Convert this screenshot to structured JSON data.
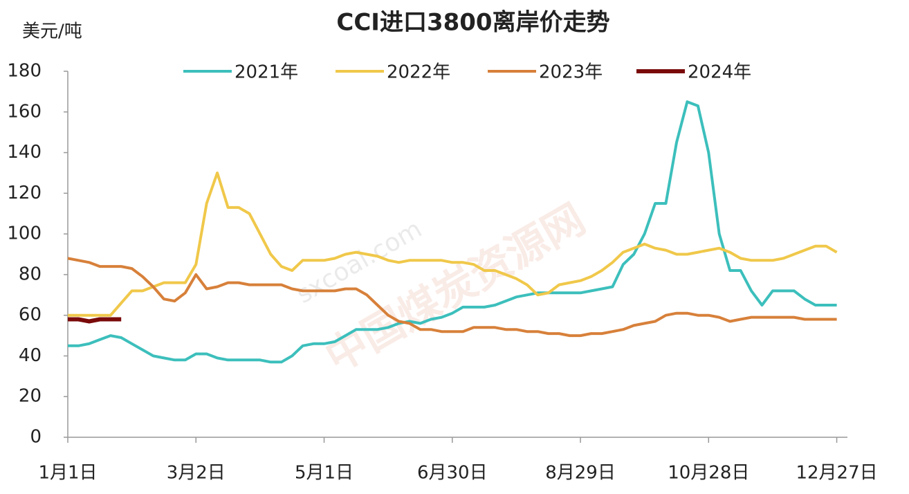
{
  "chart_data": {
    "type": "line",
    "title": "CCI进口3800离岸价走势",
    "y_label": "美元/吨",
    "watermark": [
      "中国煤炭资源网",
      "sxcoal.com"
    ],
    "xlim": [
      0,
      365
    ],
    "xticks": [
      {
        "value": 0,
        "label": "1月1日"
      },
      {
        "value": 60,
        "label": "3月2日"
      },
      {
        "value": 120,
        "label": "5月1日"
      },
      {
        "value": 180,
        "label": "6月30日"
      },
      {
        "value": 240,
        "label": "8月29日"
      },
      {
        "value": 300,
        "label": "10月28日"
      },
      {
        "value": 360,
        "label": "12月27日"
      }
    ],
    "ylim": [
      0,
      180
    ],
    "yticks": [
      0,
      20,
      40,
      60,
      80,
      100,
      120,
      140,
      160,
      180
    ],
    "legend": "top",
    "x": [
      0,
      5,
      10,
      15,
      20,
      25,
      30,
      35,
      40,
      45,
      50,
      55,
      60,
      65,
      70,
      75,
      80,
      85,
      90,
      95,
      100,
      105,
      110,
      115,
      120,
      125,
      130,
      135,
      140,
      145,
      150,
      155,
      160,
      165,
      170,
      175,
      180,
      185,
      190,
      195,
      200,
      205,
      210,
      215,
      220,
      225,
      230,
      235,
      240,
      245,
      250,
      255,
      260,
      265,
      270,
      275,
      280,
      285,
      290,
      295,
      300,
      305,
      310,
      315,
      320,
      325,
      330,
      335,
      340,
      345,
      350,
      355,
      360
    ],
    "series": [
      {
        "name": "2021年",
        "color": "#3cbfbc",
        "values": [
          45,
          45,
          46,
          48,
          50,
          49,
          46,
          43,
          40,
          39,
          38,
          38,
          41,
          41,
          39,
          38,
          38,
          38,
          38,
          37,
          37,
          40,
          45,
          46,
          46,
          47,
          50,
          53,
          53,
          53,
          54,
          56,
          57,
          56,
          58,
          59,
          61,
          64,
          64,
          64,
          65,
          67,
          69,
          70,
          71,
          71,
          71,
          71,
          71,
          72,
          73,
          74,
          85,
          90,
          100,
          115,
          115,
          145,
          165,
          163,
          140,
          100,
          82,
          82,
          72,
          65,
          72,
          72,
          72,
          68,
          65,
          65,
          65
        ]
      },
      {
        "name": "2022年",
        "color": "#f0c84a",
        "values": [
          60,
          60,
          60,
          60,
          60,
          66,
          72,
          72,
          74,
          76,
          76,
          76,
          85,
          115,
          130,
          113,
          113,
          110,
          100,
          90,
          84,
          82,
          87,
          87,
          87,
          88,
          90,
          91,
          90,
          89,
          87,
          86,
          87,
          87,
          87,
          87,
          86,
          86,
          85,
          82,
          82,
          80,
          78,
          75,
          70,
          71,
          75,
          76,
          77,
          79,
          82,
          86,
          91,
          93,
          95,
          93,
          92,
          90,
          90,
          91,
          92,
          93,
          91,
          88,
          87,
          87,
          87,
          88,
          90,
          92,
          94,
          94,
          91
        ]
      },
      {
        "name": "2023年",
        "color": "#d7803a",
        "values": [
          88,
          87,
          86,
          84,
          84,
          84,
          83,
          79,
          74,
          68,
          67,
          71,
          80,
          73,
          74,
          76,
          76,
          75,
          75,
          75,
          75,
          73,
          72,
          72,
          72,
          72,
          73,
          73,
          70,
          65,
          60,
          57,
          56,
          53,
          53,
          52,
          52,
          52,
          54,
          54,
          54,
          53,
          53,
          52,
          52,
          51,
          51,
          50,
          50,
          51,
          51,
          52,
          53,
          55,
          56,
          57,
          60,
          61,
          61,
          60,
          60,
          59,
          57,
          58,
          59,
          59,
          59,
          59,
          59,
          58,
          58,
          58,
          58
        ]
      },
      {
        "name": "2024年",
        "color": "#7a0a0a",
        "values": [
          58,
          58,
          57,
          58,
          58,
          58,
          null,
          null,
          null,
          null,
          null,
          null,
          null,
          null,
          null,
          null,
          null,
          null,
          null,
          null,
          null,
          null,
          null,
          null,
          null,
          null,
          null,
          null,
          null,
          null,
          null,
          null,
          null,
          null,
          null,
          null,
          null,
          null,
          null,
          null,
          null,
          null,
          null,
          null,
          null,
          null,
          null,
          null,
          null,
          null,
          null,
          null,
          null,
          null,
          null,
          null,
          null,
          null,
          null,
          null,
          null,
          null,
          null,
          null,
          null,
          null,
          null,
          null,
          null,
          null,
          null,
          null,
          null
        ]
      }
    ]
  }
}
